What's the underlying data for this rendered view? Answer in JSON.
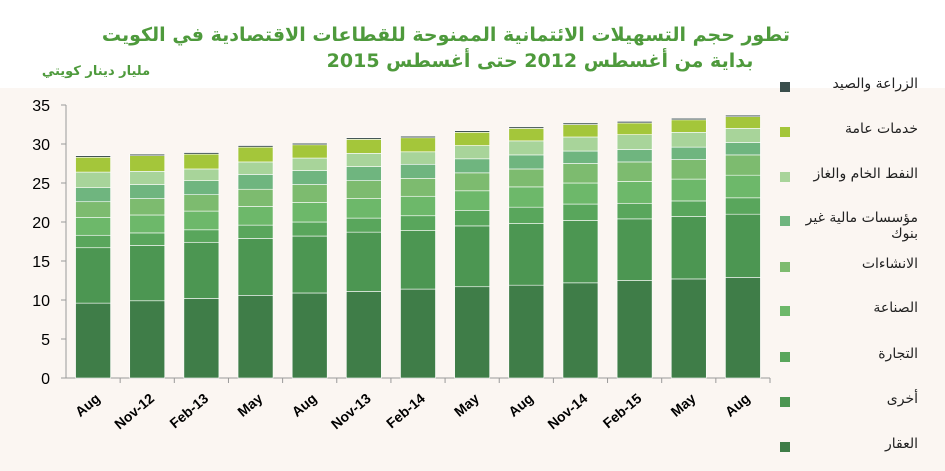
{
  "chart_data": {
    "type": "bar",
    "stacked": true,
    "title_lines": [
      "تطور حجم التسهيلات الائتمانية الممنوحة للقطاعات الاقتصادية في الكويت",
      "بداية من أغسطس 2012 حتى أغسطس 2015"
    ],
    "ylabel": "مليار دينار كويتي",
    "xlabel": "",
    "ylim": [
      0,
      35
    ],
    "yticks": [
      0,
      5,
      10,
      15,
      20,
      25,
      30,
      35
    ],
    "grid": false,
    "legend_position": "right",
    "categories": [
      "Aug",
      "Nov-12",
      "Feb-13",
      "May",
      "Aug",
      "Nov-13",
      "Feb-14",
      "May",
      "Aug",
      "Nov-14",
      "Feb-15",
      "May",
      "Aug"
    ],
    "series": [
      {
        "name": "العقار",
        "color": "#3f7d48",
        "values": [
          9.6,
          9.9,
          10.2,
          10.6,
          10.9,
          11.1,
          11.4,
          11.7,
          11.9,
          12.2,
          12.5,
          12.7,
          12.9
        ]
      },
      {
        "name": "أخرى",
        "color": "#4c9652",
        "values": [
          7.1,
          7.1,
          7.2,
          7.3,
          7.3,
          7.6,
          7.5,
          7.8,
          7.9,
          8.0,
          7.9,
          8.0,
          8.1
        ]
      },
      {
        "name": "التجارة",
        "color": "#59a65c",
        "values": [
          1.6,
          1.6,
          1.6,
          1.7,
          1.8,
          1.8,
          1.9,
          2.0,
          2.1,
          2.1,
          2.0,
          2.0,
          2.1
        ]
      },
      {
        "name": "الصناعة",
        "color": "#6db86a",
        "values": [
          2.3,
          2.3,
          2.4,
          2.4,
          2.5,
          2.5,
          2.5,
          2.5,
          2.6,
          2.7,
          2.8,
          2.8,
          2.9
        ]
      },
      {
        "name": "الانشاءات",
        "color": "#7dbb6f",
        "values": [
          2.0,
          2.1,
          2.1,
          2.2,
          2.3,
          2.3,
          2.3,
          2.3,
          2.3,
          2.5,
          2.5,
          2.5,
          2.6
        ]
      },
      {
        "name": "مؤسسات مالية غير بنوك",
        "color": "#6fb57f",
        "values": [
          1.8,
          1.8,
          1.8,
          1.9,
          1.8,
          1.8,
          1.8,
          1.8,
          1.8,
          1.6,
          1.6,
          1.6,
          1.6
        ]
      },
      {
        "name": "النفط الخام والغاز",
        "color": "#a8d49a",
        "values": [
          2.0,
          1.7,
          1.5,
          1.6,
          1.6,
          1.7,
          1.6,
          1.7,
          1.8,
          1.8,
          1.9,
          1.9,
          1.8
        ]
      },
      {
        "name": "خدمات عامة",
        "color": "#a4c63a",
        "values": [
          1.9,
          2.0,
          1.9,
          1.9,
          1.7,
          1.8,
          1.8,
          1.7,
          1.6,
          1.6,
          1.5,
          1.6,
          1.5
        ]
      },
      {
        "name": "الزراعة والصيد",
        "color": "#3a4e4c",
        "values": [
          0.2,
          0.2,
          0.2,
          0.2,
          0.2,
          0.2,
          0.2,
          0.2,
          0.2,
          0.2,
          0.2,
          0.2,
          0.2
        ]
      }
    ],
    "legend_order_top_to_bottom": [
      8,
      7,
      6,
      5,
      4,
      3,
      2,
      1,
      0
    ],
    "legend_labels": [
      "الزراعة والصيد",
      "خدمات عامة",
      "النفط الخام والغاز",
      "مؤسسات مالية غير بنوك",
      "الانشاءات",
      "الصناعة",
      "التجارة",
      "أخرى",
      "العقار"
    ]
  }
}
